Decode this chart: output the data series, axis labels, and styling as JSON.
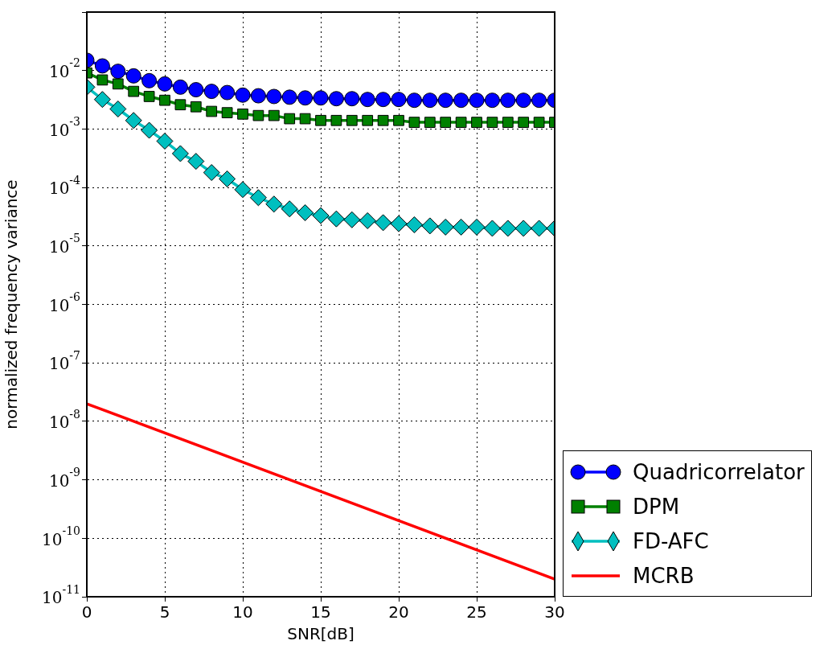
{
  "chart_data": {
    "type": "line",
    "xlabel": "SNR[dB]",
    "ylabel": "normalized frequency variance",
    "x": [
      0,
      1,
      2,
      3,
      4,
      5,
      6,
      7,
      8,
      9,
      10,
      11,
      12,
      13,
      14,
      15,
      16,
      17,
      18,
      19,
      20,
      21,
      22,
      23,
      24,
      25,
      26,
      27,
      28,
      29,
      30
    ],
    "series": [
      {
        "name": "Quadricorrelator",
        "color": "#0000ff",
        "marker": "circle",
        "values": [
          0.015,
          0.012,
          0.0097,
          0.0081,
          0.0067,
          0.0059,
          0.0052,
          0.0047,
          0.0044,
          0.0042,
          0.0038,
          0.0037,
          0.0036,
          0.0035,
          0.0034,
          0.0034,
          0.0033,
          0.0033,
          0.0032,
          0.0032,
          0.0032,
          0.0031,
          0.0031,
          0.0031,
          0.0031,
          0.0031,
          0.0031,
          0.0031,
          0.0031,
          0.0031,
          0.0031
        ]
      },
      {
        "name": "DPM",
        "color": "#008000",
        "marker": "square",
        "values": [
          0.0091,
          0.0069,
          0.0059,
          0.0044,
          0.0036,
          0.0031,
          0.0026,
          0.0024,
          0.002,
          0.0019,
          0.0018,
          0.0017,
          0.0017,
          0.0015,
          0.0015,
          0.0014,
          0.0014,
          0.0014,
          0.0014,
          0.0014,
          0.0014,
          0.0013,
          0.0013,
          0.0013,
          0.0013,
          0.0013,
          0.0013,
          0.0013,
          0.0013,
          0.0013,
          0.0013
        ]
      },
      {
        "name": "FD-AFC",
        "color": "#00bfbf",
        "marker": "diamond",
        "values": [
          0.0052,
          0.0032,
          0.0022,
          0.0014,
          0.00095,
          0.00062,
          0.00038,
          0.00028,
          0.00018,
          0.00014,
          9.2e-05,
          6.7e-05,
          5.2e-05,
          4.3e-05,
          3.7e-05,
          3.3e-05,
          2.9e-05,
          2.8e-05,
          2.7e-05,
          2.5e-05,
          2.4e-05,
          2.3e-05,
          2.2e-05,
          2.1e-05,
          2.1e-05,
          2.1e-05,
          2e-05,
          2e-05,
          2e-05,
          2e-05,
          2e-05
        ]
      },
      {
        "name": "MCRB",
        "color": "#ff0000",
        "marker": "none",
        "x": [
          0,
          10,
          20,
          30
        ],
        "values": [
          2e-08,
          2e-09,
          2e-10,
          2e-11
        ]
      }
    ],
    "xlim": [
      0,
      30
    ],
    "xticks": [
      0,
      5,
      10,
      15,
      20,
      25,
      30
    ],
    "ylim": [
      1e-11,
      0.1
    ],
    "log": "y",
    "yticks": [
      {
        "value": 1e-11,
        "label": "10$^{-11}$"
      },
      {
        "value": 1e-10,
        "label": "10$^{-10}$"
      },
      {
        "value": 1e-09,
        "label": "10$^{-9}$"
      },
      {
        "value": 1e-08,
        "label": "10$^{-8}$"
      },
      {
        "value": 1e-07,
        "label": "10$^{-7}$"
      },
      {
        "value": 1e-06,
        "label": "10$^{-6}$"
      },
      {
        "value": 1e-05,
        "label": "10$^{-5}$"
      },
      {
        "value": 0.0001,
        "label": "10$^{-4}$"
      },
      {
        "value": 0.001,
        "label": "10$^{-3}$"
      },
      {
        "value": 0.01,
        "label": "10$^{-2}$"
      },
      {
        "value": 0.1,
        "label": null
      }
    ],
    "grid": true,
    "legend": "bottom right",
    "line_style": "solid"
  }
}
